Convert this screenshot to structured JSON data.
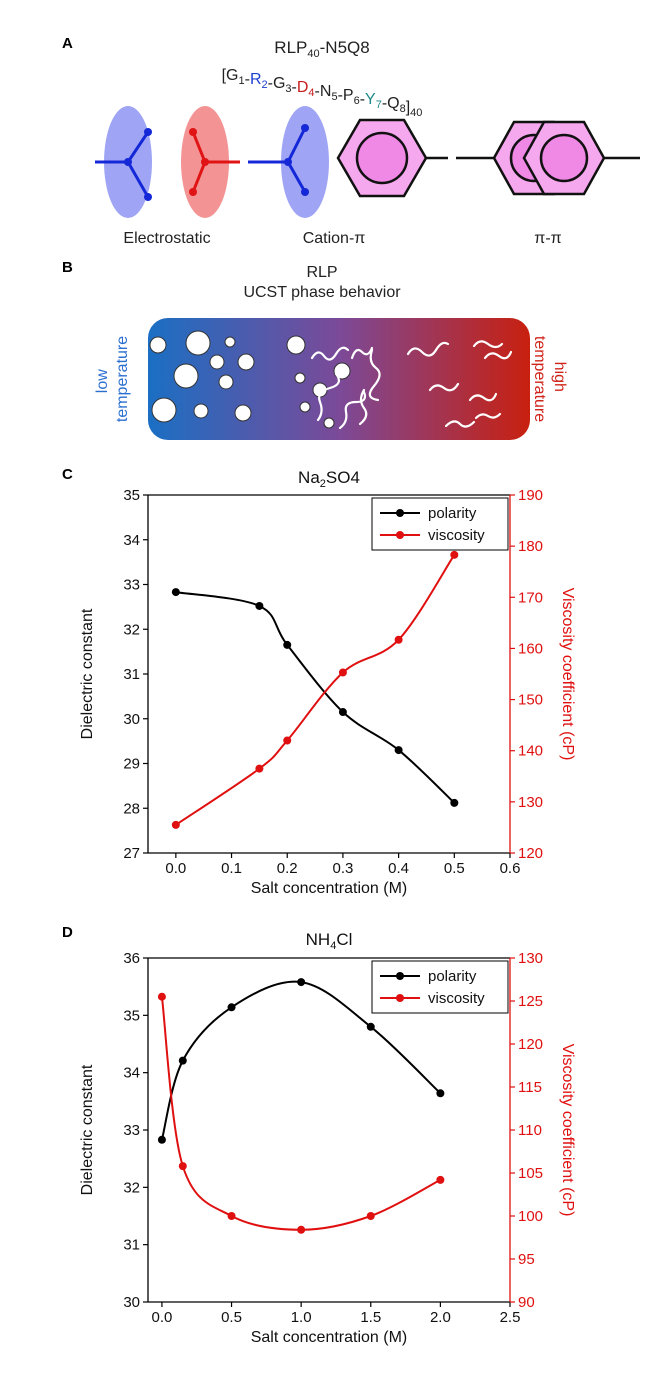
{
  "panel_a": {
    "letter": "A",
    "title_main": "RLP",
    "title_sub1": "40",
    "title_rest": "-N5Q8",
    "seq_open": "[G",
    "seq_units": [
      {
        "dash": "",
        "letter": "G",
        "sub": "1",
        "color": "#222222"
      },
      {
        "dash": "-",
        "letter": "R",
        "sub": "2",
        "color": "#1f3fd0"
      },
      {
        "dash": "-",
        "letter": "G",
        "sub": "3",
        "color": "#222222"
      },
      {
        "dash": "-",
        "letter": "D",
        "sub": "4",
        "color": "#c81e1e"
      },
      {
        "dash": "-",
        "letter": "N",
        "sub": "5",
        "color": "#222222"
      },
      {
        "dash": "-",
        "letter": "P",
        "sub": "6",
        "color": "#222222"
      },
      {
        "dash": "-",
        "letter": "Y",
        "sub": "7",
        "color": "#1f8a8a"
      },
      {
        "dash": "-",
        "letter": "Q",
        "sub": "8",
        "color": "#222222"
      }
    ],
    "seq_close": "]",
    "seq_repeat": "40",
    "labels": {
      "electrostatic": "Electrostatic",
      "cation_pi": "Cation-π",
      "pi_pi": "π-π"
    }
  },
  "panel_b": {
    "letter": "B",
    "title1": "RLP",
    "title2": "UCST phase behavior",
    "left_label1": "low",
    "left_label2": "temperature",
    "right_label1": "high",
    "right_label2": "temperature",
    "colors": {
      "cold": "#1a6fc4",
      "hot": "#c8200f"
    }
  },
  "chart_data": [
    {
      "panel": "C",
      "type": "line",
      "title": "Na2SO4",
      "title_parts": {
        "a": "Na",
        "sub": "2",
        "b": "SO4"
      },
      "xlabel": "Salt concentration (M)",
      "ylabel": "Dielectric constant",
      "y2label": "Viscosity coefficient (cP)",
      "xlim": [
        -0.05,
        0.6
      ],
      "ylim": [
        27,
        35
      ],
      "y2lim": [
        120,
        190
      ],
      "xticks": [
        0.0,
        0.1,
        0.2,
        0.3,
        0.4,
        0.5,
        0.6
      ],
      "xtick_labels": [
        "0.0",
        "0.1",
        "0.2",
        "0.3",
        "0.4",
        "0.5",
        "0.6"
      ],
      "yticks": [
        27,
        28,
        29,
        30,
        31,
        32,
        33,
        34,
        35
      ],
      "y2ticks": [
        120,
        130,
        140,
        150,
        160,
        170,
        180,
        190
      ],
      "legend_position": "top-right",
      "series": [
        {
          "name": "polarity",
          "axis": "left",
          "color": "#000000",
          "x": [
            0.0,
            0.15,
            0.2,
            0.3,
            0.4,
            0.5
          ],
          "y": [
            32.83,
            32.52,
            31.65,
            30.15,
            29.3,
            28.12
          ]
        },
        {
          "name": "viscosity",
          "axis": "right",
          "color": "#e01010",
          "x": [
            0.0,
            0.15,
            0.2,
            0.3,
            0.4,
            0.5
          ],
          "y": [
            125.5,
            136.5,
            142.0,
            155.3,
            161.7,
            178.3
          ]
        }
      ]
    },
    {
      "panel": "D",
      "type": "line",
      "title": "NH4Cl",
      "title_parts": {
        "a": "NH",
        "sub": "4",
        "b": "Cl"
      },
      "xlabel": "Salt concentration (M)",
      "ylabel": "Dielectric constant",
      "y2label": "Viscosity coefficient (cP)",
      "xlim": [
        -0.1,
        2.5
      ],
      "ylim": [
        30,
        36
      ],
      "y2lim": [
        90,
        130
      ],
      "xticks": [
        0.0,
        0.5,
        1.0,
        1.5,
        2.0,
        2.5
      ],
      "xtick_labels": [
        "0.0",
        "0.5",
        "1.0",
        "1.5",
        "2.0",
        "2.5"
      ],
      "yticks": [
        30,
        31,
        32,
        33,
        34,
        35,
        36
      ],
      "y2ticks": [
        90,
        95,
        100,
        105,
        110,
        115,
        120,
        125,
        130
      ],
      "legend_position": "top-right",
      "series": [
        {
          "name": "polarity",
          "axis": "left",
          "color": "#000000",
          "x": [
            0.0,
            0.15,
            0.5,
            1.0,
            1.5,
            2.0
          ],
          "y": [
            32.83,
            34.21,
            35.14,
            35.58,
            34.8,
            33.64
          ]
        },
        {
          "name": "viscosity",
          "axis": "right",
          "color": "#e01010",
          "x": [
            0.0,
            0.15,
            0.5,
            1.0,
            1.5,
            2.0
          ],
          "y": [
            125.5,
            105.8,
            100.0,
            98.4,
            100.0,
            104.2
          ]
        }
      ]
    }
  ]
}
